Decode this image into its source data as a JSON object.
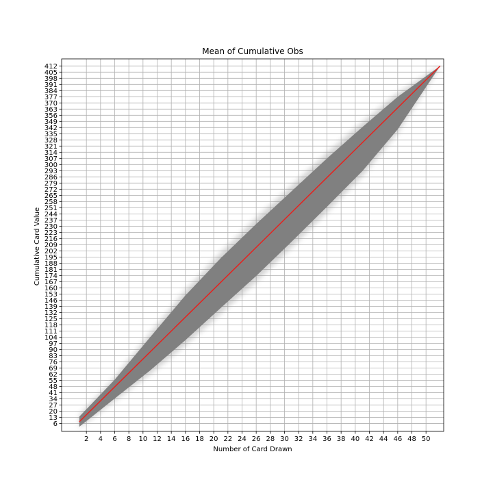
{
  "chart_data": {
    "type": "line",
    "title": "Mean of Cumulative Obs",
    "xlabel": "Number of Card Drawn",
    "ylabel": "Cumulative Card Value",
    "xlim": [
      -1.5,
      52.5
    ],
    "ylim": [
      -3,
      420
    ],
    "grid": true,
    "x_ticks": [
      2,
      4,
      6,
      8,
      10,
      12,
      14,
      16,
      18,
      20,
      22,
      24,
      26,
      28,
      30,
      32,
      34,
      36,
      38,
      40,
      42,
      44,
      46,
      48,
      50
    ],
    "y_ticks": [
      6,
      13,
      20,
      27,
      34,
      41,
      48,
      55,
      62,
      69,
      76,
      83,
      90,
      97,
      104,
      111,
      118,
      125,
      132,
      139,
      146,
      153,
      160,
      167,
      174,
      181,
      188,
      195,
      202,
      209,
      216,
      223,
      230,
      237,
      244,
      251,
      258,
      265,
      272,
      279,
      286,
      293,
      300,
      307,
      314,
      321,
      328,
      335,
      342,
      349,
      356,
      363,
      370,
      377,
      384,
      391,
      398,
      405,
      412
    ],
    "series": [
      {
        "role": "mean",
        "color": "#e8201c",
        "x": [
          1,
          52
        ],
        "y": [
          7.9,
          412
        ]
      },
      {
        "role": "observations-band",
        "color": "#808080",
        "x": [
          1,
          6,
          11,
          16,
          21,
          26,
          31,
          36,
          41,
          46,
          52
        ],
        "y_lower": [
          1,
          32,
          62,
          95,
          131,
          167,
          206,
          246,
          287,
          336,
          412
        ],
        "y_upper": [
          15,
          58,
          108,
          157,
          200,
          239,
          276,
          313,
          348,
          381,
          412
        ]
      }
    ]
  }
}
